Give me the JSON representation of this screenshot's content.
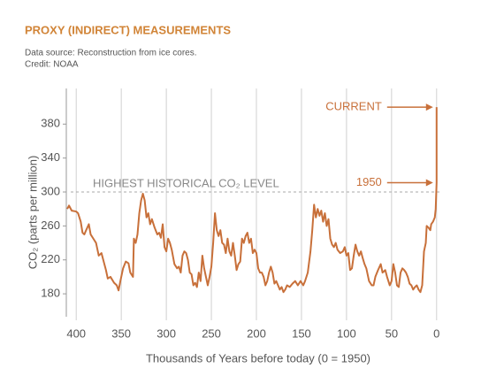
{
  "chart_data": {
    "type": "line",
    "title": "PROXY (INDIRECT) MEASUREMENTS",
    "subtitle": [
      "Data source: Reconstruction from ice cores.",
      "Credit: NOAA"
    ],
    "x_label": "Thousands of Years before today (0 = 1950)",
    "y_label": "CO₂ (parts per million)",
    "color": "#c8703a",
    "xlim": [
      411,
      -11
    ],
    "ylim": [
      153,
      422
    ],
    "xticks": [
      400,
      350,
      300,
      250,
      200,
      150,
      100,
      50,
      0
    ],
    "yticks": [
      180,
      220,
      260,
      300,
      340,
      380
    ],
    "grid": true,
    "reference_line": {
      "label": "HIGHEST HISTORICAL CO₂ LEVEL",
      "value": 300
    },
    "annotations": [
      {
        "text": "CURRENT",
        "x": 0,
        "y": 400
      },
      {
        "text": "1950",
        "x": 0,
        "y": 311
      }
    ],
    "x": [
      410,
      408,
      405,
      400,
      398,
      395,
      393,
      391,
      389,
      386,
      384,
      381,
      378,
      375,
      372,
      370,
      367,
      365,
      362,
      358,
      355,
      353,
      351,
      348,
      345,
      342,
      340,
      337,
      336,
      334,
      332,
      330,
      328,
      326,
      324,
      322,
      320,
      318,
      316,
      313,
      310,
      308,
      306,
      304,
      302,
      300,
      298,
      296,
      294,
      291,
      288,
      286,
      284,
      282,
      280,
      278,
      276,
      274,
      272,
      270,
      268,
      266,
      264,
      262,
      260,
      258,
      256,
      254,
      252,
      250,
      248,
      246,
      244,
      242,
      240,
      238,
      236,
      234,
      232,
      230,
      228,
      226,
      224,
      222,
      220,
      218,
      216,
      214,
      212,
      210,
      208,
      206,
      204,
      202,
      200,
      198,
      196,
      194,
      192,
      190,
      188,
      186,
      184,
      182,
      180,
      178,
      176,
      174,
      172,
      170,
      168,
      166,
      163,
      160,
      157,
      154,
      151,
      148,
      146,
      143,
      140,
      138,
      136,
      134,
      132,
      130,
      128,
      126,
      124,
      122,
      120,
      118,
      116,
      114,
      112,
      110,
      107,
      104,
      102,
      100,
      98,
      96,
      94,
      92,
      90,
      88,
      86,
      84,
      82,
      80,
      78,
      75,
      72,
      70,
      68,
      65,
      62,
      60,
      57,
      55,
      52,
      50,
      48,
      46,
      44,
      42,
      40,
      38,
      36,
      34,
      32,
      30,
      28,
      26,
      24,
      22,
      20,
      18,
      16,
      14,
      12,
      11,
      9,
      7,
      6,
      4,
      2,
      1,
      0,
      0
    ],
    "values": [
      280,
      284,
      278,
      277,
      275,
      265,
      252,
      250,
      255,
      262,
      250,
      245,
      240,
      225,
      228,
      220,
      208,
      198,
      200,
      193,
      190,
      184,
      195,
      210,
      218,
      216,
      205,
      200,
      245,
      240,
      250,
      275,
      290,
      298,
      290,
      270,
      275,
      262,
      268,
      258,
      250,
      252,
      246,
      262,
      235,
      230,
      245,
      240,
      232,
      215,
      210,
      212,
      205,
      225,
      230,
      228,
      220,
      205,
      203,
      190,
      193,
      188,
      205,
      195,
      225,
      210,
      200,
      190,
      200,
      212,
      240,
      275,
      255,
      248,
      255,
      240,
      238,
      228,
      245,
      230,
      225,
      240,
      225,
      208,
      215,
      218,
      245,
      240,
      248,
      252,
      240,
      245,
      228,
      232,
      228,
      210,
      205,
      205,
      200,
      190,
      195,
      205,
      212,
      205,
      192,
      195,
      190,
      185,
      188,
      182,
      185,
      190,
      188,
      192,
      195,
      190,
      195,
      190,
      195,
      205,
      230,
      255,
      285,
      270,
      280,
      272,
      278,
      265,
      275,
      260,
      268,
      245,
      238,
      235,
      240,
      232,
      228,
      230,
      235,
      225,
      228,
      208,
      210,
      225,
      238,
      230,
      225,
      230,
      222,
      215,
      210,
      195,
      190,
      190,
      200,
      208,
      215,
      205,
      208,
      200,
      190,
      195,
      215,
      205,
      190,
      188,
      205,
      210,
      208,
      205,
      200,
      192,
      190,
      185,
      188,
      190,
      185,
      182,
      190,
      230,
      240,
      260,
      258,
      255,
      262,
      265,
      270,
      280,
      311,
      400
    ]
  }
}
